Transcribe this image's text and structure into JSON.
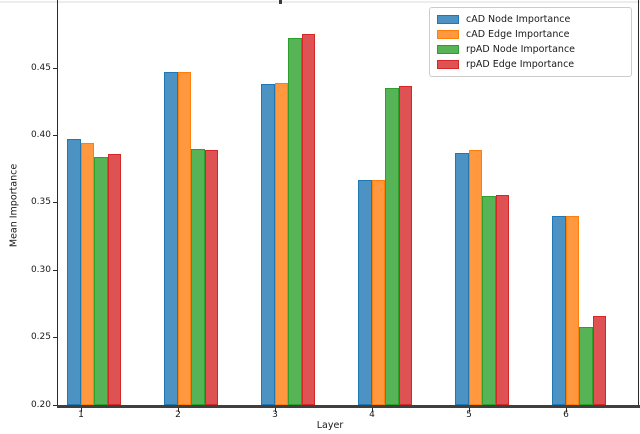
{
  "chart_data": {
    "type": "bar",
    "title": "",
    "xlabel": "Layer",
    "ylabel": "Mean Importance",
    "categories": [
      "1",
      "2",
      "3",
      "4",
      "5",
      "6"
    ],
    "series": [
      {
        "name": "cAD Node Importance",
        "color": "#4C92C3",
        "edge": "#1f77b4",
        "values": [
          0.397,
          0.447,
          0.438,
          0.367,
          0.387,
          0.34
        ]
      },
      {
        "name": "cAD Edge Importance",
        "color": "#FF983E",
        "edge": "#ff7f0e",
        "values": [
          0.394,
          0.447,
          0.439,
          0.367,
          0.389,
          0.34
        ]
      },
      {
        "name": "rpAD Node Importance",
        "color": "#56B356",
        "edge": "#2ca02c",
        "values": [
          0.384,
          0.39,
          0.472,
          0.435,
          0.355,
          0.258
        ]
      },
      {
        "name": "rpAD Edge Importance",
        "color": "#DE5253",
        "edge": "#d62728",
        "values": [
          0.386,
          0.389,
          0.475,
          0.437,
          0.356,
          0.266
        ]
      }
    ],
    "ylim": [
      0.2,
      0.493
    ],
    "yticks": [
      0.2,
      0.25,
      0.3,
      0.35,
      0.4,
      0.45
    ],
    "grid": false,
    "legend_position": "upper right"
  }
}
